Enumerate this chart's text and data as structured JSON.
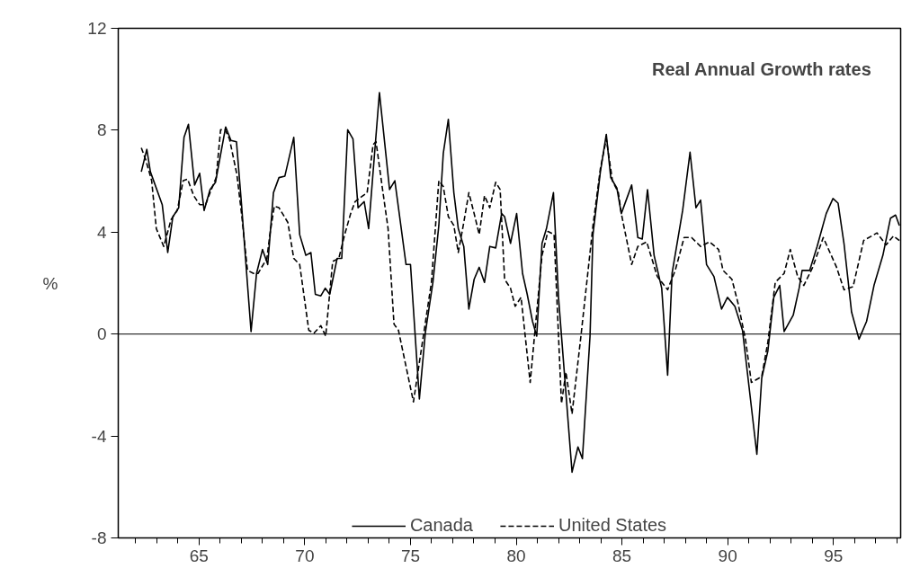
{
  "chart_data": {
    "type": "line",
    "title": "Real Annual Growth rates",
    "ylabel": "%",
    "xlim": [
      61.18,
      98.18
    ],
    "ylim": [
      -8,
      12
    ],
    "xticks": [
      65,
      70,
      75,
      80,
      85,
      90,
      95
    ],
    "yticks": [
      -8,
      -4,
      0,
      4,
      8,
      12
    ],
    "grid": false,
    "legend": "bottom",
    "marker": "none",
    "ref_lines": [
      {
        "axis": "y",
        "value": 0
      }
    ],
    "series": [
      {
        "name": "Canada",
        "color": "#000000",
        "line_style": "solid",
        "x": [
          62.27,
          62.53,
          62.7,
          63.26,
          63.52,
          63.76,
          64.04,
          64.29,
          64.5,
          64.79,
          65.03,
          65.24,
          65.52,
          65.78,
          66.26,
          66.51,
          66.77,
          67.01,
          67.22,
          67.46,
          67.72,
          68.0,
          68.25,
          68.52,
          68.78,
          69.06,
          69.48,
          69.76,
          70.05,
          70.29,
          70.5,
          70.76,
          70.97,
          71.18,
          71.53,
          71.75,
          72.03,
          72.28,
          72.52,
          72.81,
          73.02,
          73.53,
          74.01,
          74.26,
          74.79,
          75.0,
          75.42,
          75.7,
          76.06,
          76.34,
          76.55,
          76.79,
          77.05,
          77.26,
          77.52,
          77.76,
          78.01,
          78.25,
          78.5,
          78.75,
          79.03,
          79.31,
          79.45,
          79.73,
          80.02,
          80.3,
          80.52,
          80.77,
          80.97,
          81.22,
          81.43,
          81.76,
          82.0,
          82.64,
          82.92,
          83.13,
          83.49,
          83.63,
          83.98,
          84.26,
          84.47,
          84.76,
          84.97,
          85.46,
          85.75,
          85.96,
          86.21,
          86.52,
          86.88,
          87.16,
          87.37,
          87.87,
          88.22,
          88.5,
          88.72,
          89.0,
          89.35,
          89.71,
          89.99,
          90.34,
          90.7,
          91.38,
          91.61,
          91.9,
          92.18,
          92.46,
          92.67,
          93.1,
          93.38,
          93.52,
          93.88,
          94.23,
          94.66,
          94.98,
          95.22,
          95.5,
          95.86,
          96.21,
          96.57,
          96.92,
          97.34,
          97.7,
          97.94,
          98.12
        ],
        "values": [
          6.37,
          7.25,
          6.37,
          5.08,
          3.2,
          4.6,
          4.96,
          7.72,
          8.23,
          5.85,
          6.31,
          4.85,
          5.67,
          5.96,
          8.13,
          7.6,
          7.55,
          5.08,
          2.73,
          0.1,
          2.38,
          3.32,
          2.73,
          5.55,
          6.14,
          6.2,
          7.72,
          3.9,
          3.09,
          3.2,
          1.56,
          1.5,
          1.8,
          1.56,
          2.97,
          2.97,
          8.02,
          7.66,
          4.96,
          5.2,
          4.14,
          9.48,
          5.67,
          6.02,
          2.73,
          2.73,
          -2.55,
          0.04,
          2.03,
          4.26,
          7.08,
          8.43,
          5.55,
          4.14,
          3.44,
          0.98,
          2.15,
          2.62,
          2.03,
          3.44,
          3.38,
          4.73,
          4.61,
          3.56,
          4.73,
          2.38,
          1.56,
          0.5,
          -0.08,
          3.56,
          4.14,
          5.55,
          1.44,
          -5.42,
          -4.43,
          -4.89,
          -0.08,
          3.91,
          6.37,
          7.84,
          6.14,
          5.73,
          4.73,
          5.85,
          3.79,
          3.73,
          5.67,
          3.09,
          1.8,
          -1.61,
          2.38,
          4.85,
          7.14,
          4.96,
          5.26,
          2.73,
          2.26,
          0.98,
          1.44,
          1.09,
          0.15,
          -4.72,
          -1.73,
          -0.67,
          1.44,
          1.91,
          0.1,
          0.74,
          1.8,
          2.5,
          2.5,
          3.44,
          4.73,
          5.32,
          5.14,
          3.56,
          0.86,
          -0.2,
          0.5,
          1.91,
          3.09,
          4.55,
          4.67,
          4.26
        ]
      },
      {
        "name": "United States",
        "color": "#000000",
        "line_style": "dashed",
        "x": [
          62.27,
          62.48,
          62.76,
          62.98,
          63.33,
          63.68,
          63.97,
          64.25,
          64.46,
          64.75,
          65.03,
          65.31,
          65.52,
          65.81,
          66.02,
          66.23,
          66.44,
          66.79,
          67.01,
          67.29,
          67.58,
          67.79,
          68.21,
          68.35,
          68.56,
          68.78,
          69.2,
          69.48,
          69.76,
          70.19,
          70.44,
          70.76,
          70.99,
          71.32,
          71.61,
          71.89,
          72.17,
          72.38,
          72.67,
          72.95,
          73.23,
          73.37,
          73.66,
          73.94,
          74.22,
          74.43,
          75.14,
          75.99,
          76.34,
          76.55,
          76.79,
          77.05,
          77.26,
          77.52,
          77.76,
          78.01,
          78.25,
          78.5,
          78.75,
          79.03,
          79.24,
          79.45,
          79.73,
          79.95,
          80.23,
          80.66,
          81.22,
          81.5,
          81.79,
          82.14,
          82.35,
          82.64,
          83.06,
          83.63,
          83.98,
          84.26,
          84.55,
          84.83,
          84.97,
          85.46,
          85.75,
          86.17,
          86.67,
          87.16,
          87.52,
          87.94,
          88.29,
          88.72,
          89.14,
          89.57,
          89.78,
          90.2,
          90.49,
          90.84,
          91.12,
          91.61,
          91.9,
          92.25,
          92.67,
          92.96,
          93.31,
          93.6,
          94.02,
          94.52,
          95.15,
          95.5,
          95.93,
          96.43,
          97.06,
          97.49,
          97.84,
          98.12
        ],
        "values": [
          7.31,
          6.84,
          6.02,
          4.14,
          3.44,
          4.5,
          4.85,
          6.02,
          6.08,
          5.43,
          5.08,
          5.08,
          5.55,
          6.14,
          8.02,
          8.02,
          7.66,
          6.26,
          4.73,
          2.5,
          2.38,
          2.38,
          2.97,
          3.91,
          5.02,
          4.96,
          4.38,
          2.97,
          2.73,
          0.15,
          0.04,
          0.33,
          -0.08,
          2.85,
          2.97,
          3.91,
          4.73,
          5.2,
          5.38,
          5.55,
          7.43,
          7.55,
          5.79,
          4.14,
          0.39,
          0.15,
          -2.66,
          2.03,
          6.02,
          5.79,
          4.61,
          4.26,
          3.2,
          4.38,
          5.55,
          4.73,
          3.91,
          5.43,
          4.96,
          5.96,
          5.67,
          2.15,
          1.8,
          1.09,
          1.44,
          -1.9,
          3.09,
          4.03,
          3.91,
          -2.72,
          -1.49,
          -3.13,
          -0.08,
          4.26,
          6.49,
          7.66,
          6.02,
          5.55,
          4.73,
          2.73,
          3.44,
          3.62,
          2.26,
          1.74,
          2.5,
          3.79,
          3.79,
          3.44,
          3.62,
          3.32,
          2.5,
          2.15,
          1.21,
          -0.2,
          -1.9,
          -1.67,
          -0.32,
          2.03,
          2.38,
          3.32,
          2.26,
          1.91,
          2.62,
          3.79,
          2.62,
          1.74,
          1.86,
          3.67,
          3.97,
          3.5,
          3.85,
          3.67
        ]
      }
    ]
  }
}
